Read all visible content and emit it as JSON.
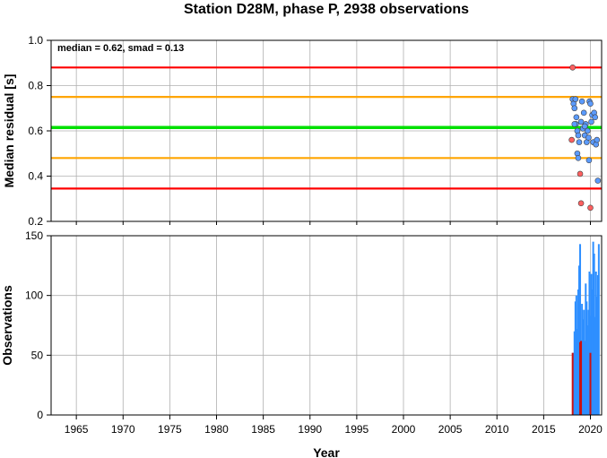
{
  "chart_data": {
    "title": "Station D28M, phase P, 2938 observations",
    "xlabel": "Year",
    "xlim": [
      1962.3,
      2021.2
    ],
    "x_ticks": [
      1965,
      1970,
      1975,
      1980,
      1985,
      1990,
      1995,
      2000,
      2005,
      2010,
      2015,
      2020
    ],
    "grid": true,
    "panels": [
      {
        "type": "scatter",
        "ylabel": "Median residual [s]",
        "ylim": [
          0.2,
          1.0
        ],
        "y_ticks": [
          "0.2",
          "0.4",
          "0.6",
          "0.8",
          "1.0"
        ],
        "annotation": "median = 0.62, smad = 0.13",
        "reference_lines": [
          {
            "y": 0.88,
            "color": "#ff0000"
          },
          {
            "y": 0.75,
            "color": "#ffa500"
          },
          {
            "y": 0.615,
            "color": "#00e000"
          },
          {
            "y": 0.48,
            "color": "#ffa500"
          },
          {
            "y": 0.345,
            "color": "#ff0000"
          }
        ],
        "series": [
          {
            "color": "#5b9bff",
            "points": [
              [
                2018.1,
                0.74
              ],
              [
                2018.2,
                0.72
              ],
              [
                2018.3,
                0.7
              ],
              [
                2018.4,
                0.74
              ],
              [
                2018.45,
                0.63
              ],
              [
                2018.3,
                0.63
              ],
              [
                2018.5,
                0.66
              ],
              [
                2018.6,
                0.6
              ],
              [
                2018.7,
                0.58
              ],
              [
                2018.6,
                0.5
              ],
              [
                2018.7,
                0.48
              ],
              [
                2018.8,
                0.55
              ],
              [
                2019.0,
                0.64
              ],
              [
                2019.1,
                0.73
              ],
              [
                2019.2,
                0.61
              ],
              [
                2019.3,
                0.68
              ],
              [
                2019.4,
                0.58
              ],
              [
                2019.5,
                0.63
              ],
              [
                2019.6,
                0.55
              ],
              [
                2019.7,
                0.6
              ],
              [
                2019.8,
                0.57
              ],
              [
                2019.9,
                0.73
              ],
              [
                2020.0,
                0.72
              ],
              [
                2020.1,
                0.64
              ],
              [
                2020.2,
                0.67
              ],
              [
                2020.3,
                0.55
              ],
              [
                2020.4,
                0.68
              ],
              [
                2020.5,
                0.66
              ],
              [
                2020.6,
                0.54
              ],
              [
                2020.7,
                0.56
              ],
              [
                2020.8,
                0.38
              ],
              [
                2019.85,
                0.47
              ],
              [
                2019.4,
                0.62
              ]
            ]
          },
          {
            "color": "#ff6060",
            "points": [
              [
                2018.1,
                0.88
              ],
              [
                2018.0,
                0.56
              ],
              [
                2018.9,
                0.41
              ],
              [
                2019.0,
                0.28
              ],
              [
                2020.0,
                0.26
              ]
            ]
          }
        ]
      },
      {
        "type": "bar",
        "ylabel": "Observations",
        "ylim": [
          0,
          150
        ],
        "y_ticks": [
          "0",
          "50",
          "100",
          "150"
        ],
        "series": [
          {
            "color": "#2e8fff",
            "x": [
              2018.2,
              2018.3,
              2018.4,
              2018.5,
              2018.6,
              2018.7,
              2018.8,
              2018.9,
              2019.0,
              2019.1,
              2019.2,
              2019.3,
              2019.4,
              2019.5,
              2019.6,
              2019.7,
              2019.8,
              2019.9,
              2020.0,
              2020.1,
              2020.2,
              2020.3,
              2020.4,
              2020.5,
              2020.6,
              2020.7,
              2020.8,
              2020.9
            ],
            "values": [
              52,
              70,
              95,
              100,
              72,
              105,
              125,
              143,
              60,
              93,
              80,
              88,
              62,
              110,
              95,
              75,
              88,
              120,
              83,
              118,
              105,
              145,
              135,
              82,
              120,
              99,
              117,
              143
            ]
          },
          {
            "color": "#cc1111",
            "x": [
              2018.1,
              2018.9,
              2019.0,
              2020.0
            ],
            "values": [
              52,
              61,
              62,
              52
            ]
          }
        ]
      }
    ]
  }
}
